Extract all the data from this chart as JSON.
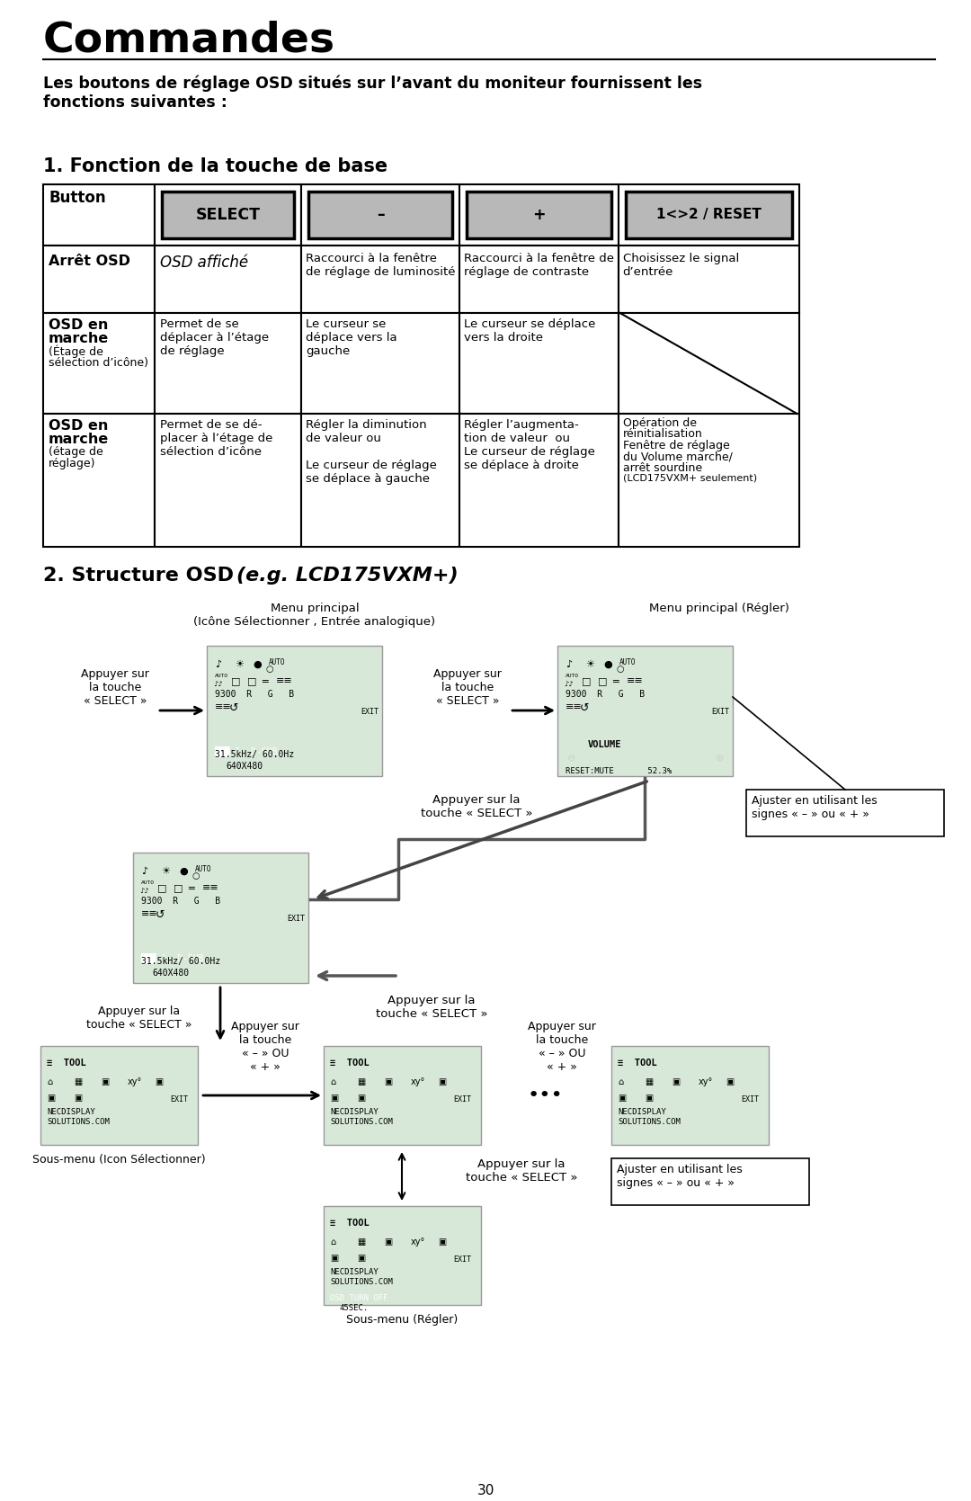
{
  "title": "Commandes",
  "subtitle": "Les boutons de réglage OSD situés sur l’avant du moniteur fournissent les\nfonctions suivantes :",
  "section1": "1. Fonction de la touche de base",
  "section2_normal": "2. Structure OSD ",
  "section2_italic": "(e.g. LCD175VXM+)",
  "page_number": "30",
  "bg_color": "#ffffff",
  "btn_labels": [
    "SELECT",
    "–",
    "+",
    "1<>2 / RESET"
  ],
  "row0": {
    "col0": "Arrêt OSD",
    "col0_bold": true,
    "col1": "OSD affiché",
    "col2": "Raccourci à la fenêtre\nde réglage de luminosité",
    "col3": "Raccourci à la fenêtre de\nréglage de contraste",
    "col4": "Choisissez le signal\nd’entrée"
  },
  "row1": {
    "col0_line1": "OSD en",
    "col0_line2": "marche",
    "col0_line3": "(Étage de",
    "col0_line4": "sélection d’icône)",
    "col1": "Permet de se\ndéplacer à l’étage\nde réglage",
    "col2": "Le curseur se\ndéplace vers la\ngauche",
    "col3": "Le curseur se déplace\nvers la droite",
    "col4": "diagonal"
  },
  "row2": {
    "col0_line1": "OSD en",
    "col0_line2": "marche",
    "col0_line3": "(étage de",
    "col0_line4": "réglage)",
    "col1": "Permet de se dé-\nplacer à l’étage de\nsélection d’icône",
    "col2": "Régler la diminution\nde valeur ou\n\nLe curseur de réglage\nse déplace à gauche",
    "col3": "Régler l’augmenta-\ntion de valeur  ou\nLe curseur de réglage\nse déplace à droite",
    "col4": "Opération de\nréinitialisation\nFenêtre de réglage\ndu Volume marche/\narrêt sourdine\n(LCD175VXM+ seulement)"
  },
  "lbl_menu1": "Menu principal\n(Icône Sélectionner , Entrée analogique)",
  "lbl_menu2": "Menu principal (Régler)",
  "lbl_app_sel1": "Appuyer sur\nla touche\n« SELECT »",
  "lbl_app_sel2": "Appuyer sur\nla touche\n« SELECT »",
  "lbl_app_sel3": "Appuyer sur la\ntouche « SELECT »",
  "lbl_app_sel4": "Appuyer sur la\ntouche « SELECT »",
  "lbl_app_sel5": "Appuyer sur la\ntouche « SELECT »",
  "lbl_app_sel6": "Appuyer sur la\ntouche « SELECT »",
  "lbl_ajuster1": "Ajuster en utilisant les\nsignes « – » ou « + »",
  "lbl_ajuster2": "Ajuster en utilisant les\nsignes « – » ou « + »",
  "lbl_sous_icon": "Sous-menu (Icon Sélectionner)",
  "lbl_sous_regler": "Sous-menu (Régler)",
  "lbl_moins_ou1": "Appuyer sur\nla touche\n« – » OU\n« + »",
  "lbl_moins_ou2": "Appuyer sur\nla touche\n« – » OU\n« + »"
}
